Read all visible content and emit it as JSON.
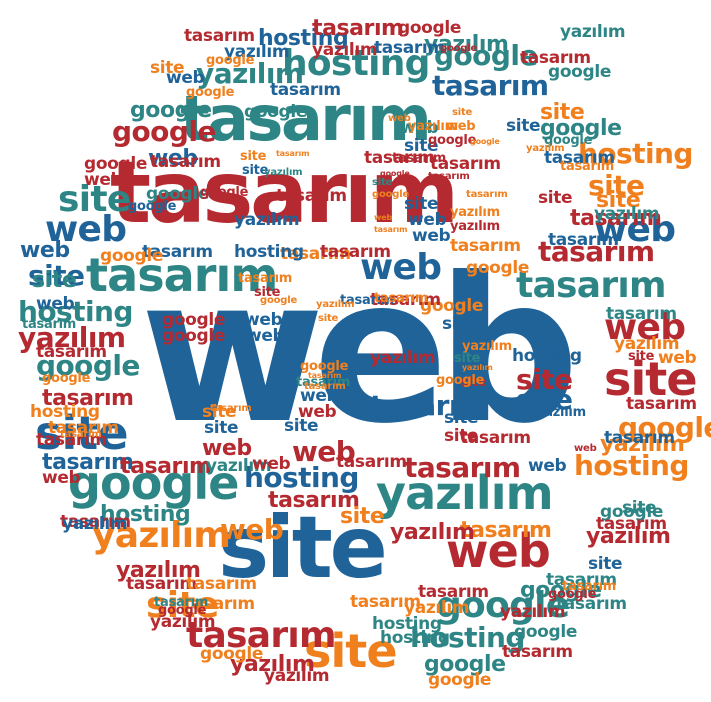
{
  "words": {
    "web": "web",
    "tasarim": "tasarım",
    "site": "site",
    "yazilim": "yazılım",
    "google": "google",
    "hosting": "hosting"
  },
  "colors": {
    "blue": "#1f6399",
    "teal": "#2e8585",
    "red": "#b42a30",
    "orange": "#f07f1d"
  }
}
